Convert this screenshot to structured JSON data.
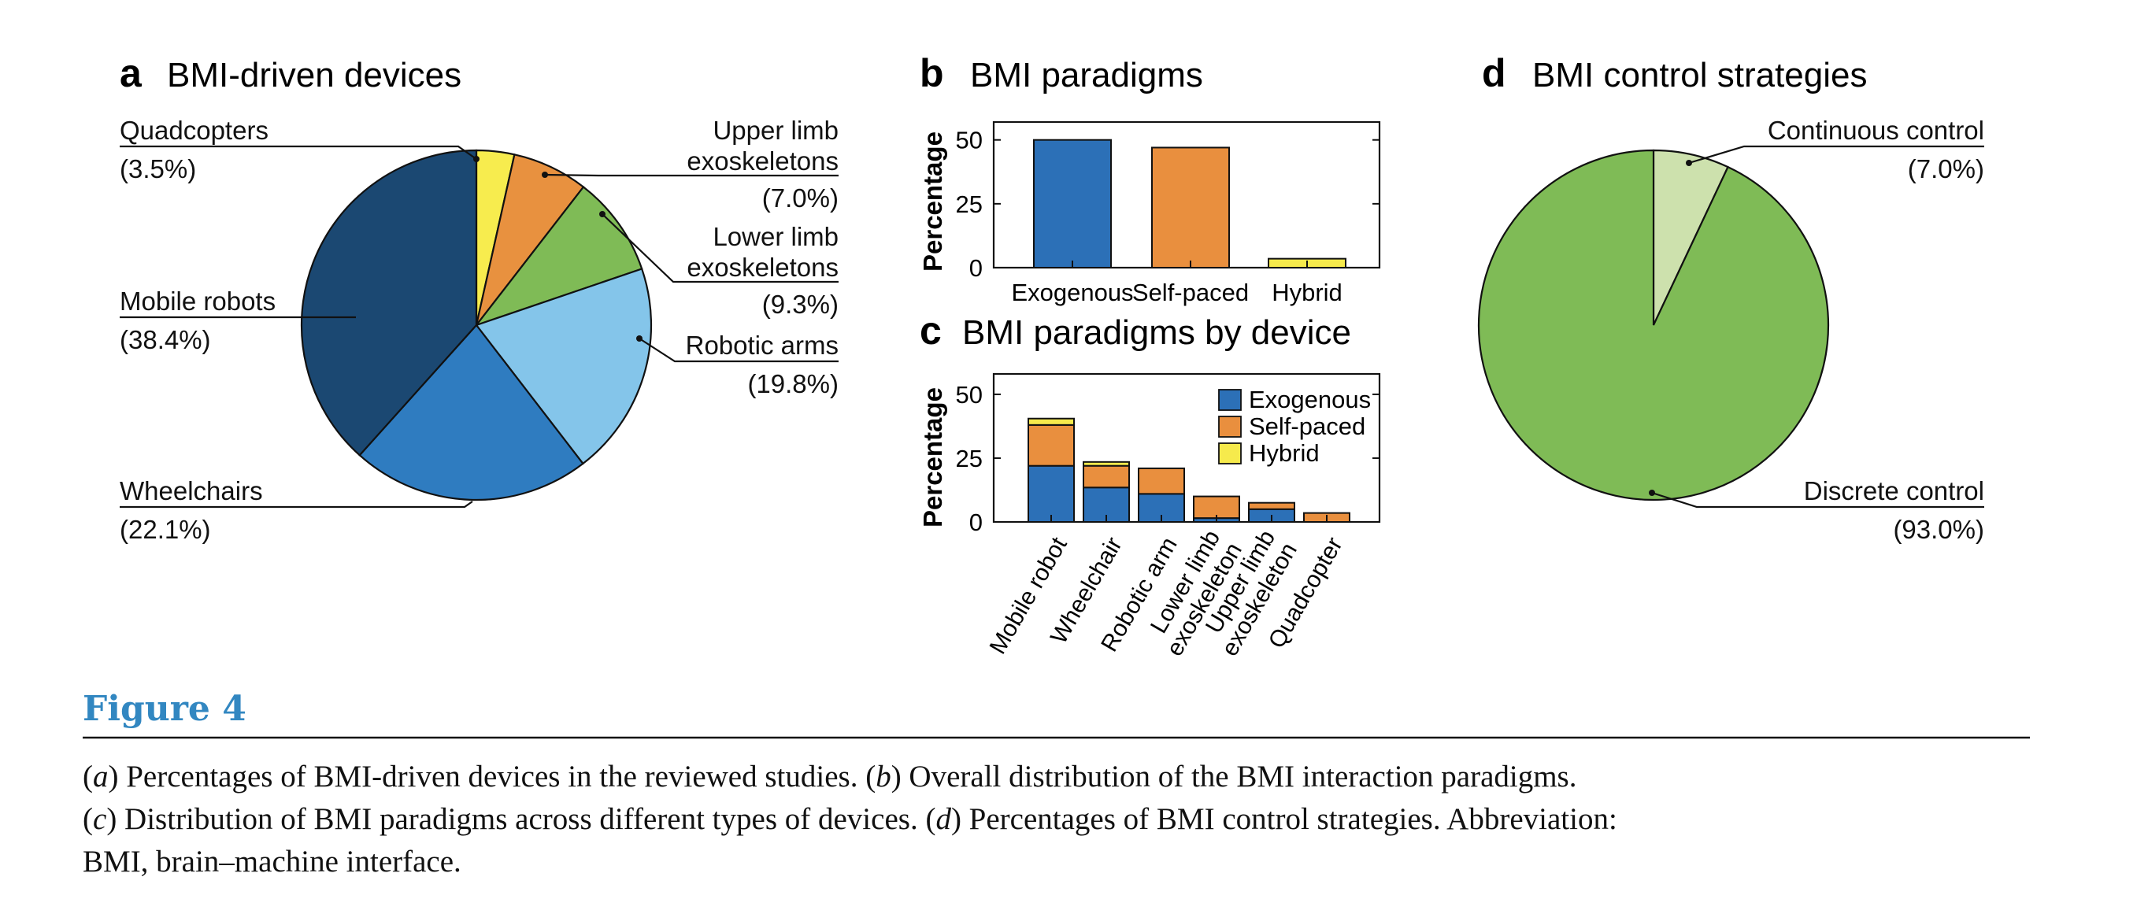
{
  "colors": {
    "dark_blue": "#1b4872",
    "mid_blue": "#2f7cc0",
    "light_blue": "#84c5ea",
    "green": "#7fbb56",
    "orange": "#e8913f",
    "yellow": "#f7ec4e",
    "pale_green": "#cde1ad",
    "caption_blue": "#3287c1",
    "bar_exogenous": "#2c70b7",
    "bar_selfpaced": "#e98f3e",
    "bar_hybrid": "#f6ea4c"
  },
  "figure_label": "Figure 4",
  "caption": {
    "line1_a": "(",
    "line1_a_letter": "a",
    "line1_a_text": ") Percentages of BMI-driven devices in the reviewed studies. (",
    "line1_b_letter": "b",
    "line1_b_text": ") Overall distribution of the BMI interaction paradigms.",
    "line2_c_open": "(",
    "line2_c_letter": "c",
    "line2_c_text": ") Distribution of BMI paradigms across different types of devices. (",
    "line2_d_letter": "d",
    "line2_d_text": ") Percentages of BMI control strategies. Abbreviation:",
    "line3": "BMI, brain–machine interface."
  },
  "chart_data": [
    {
      "panel": "a",
      "type": "pie",
      "title": "BMI-driven devices",
      "slices": [
        {
          "label": "Quadcopters",
          "value_label": "(3.5%)",
          "value": 3.5,
          "color": "#f7ec4e"
        },
        {
          "label": "Upper limb exoskeletons",
          "label_lines": [
            "Upper limb",
            "exoskeletons"
          ],
          "value_label": "(7.0%)",
          "value": 7.0,
          "color": "#e8913f"
        },
        {
          "label": "Lower limb exoskeletons",
          "label_lines": [
            "Lower limb",
            "exoskeletons"
          ],
          "value_label": "(9.3%)",
          "value": 9.3,
          "color": "#7fbb56"
        },
        {
          "label": "Robotic arms",
          "value_label": "(19.8%)",
          "value": 19.8,
          "color": "#84c5ea"
        },
        {
          "label": "Wheelchairs",
          "value_label": "(22.1%)",
          "value": 22.1,
          "color": "#2f7cc0"
        },
        {
          "label": "Mobile robots",
          "value_label": "(38.4%)",
          "value": 38.4,
          "color": "#1b4872"
        }
      ]
    },
    {
      "panel": "b",
      "type": "bar",
      "title": "BMI paradigms",
      "ylabel": "Percentage",
      "ylim": [
        0,
        57
      ],
      "yticks": [
        0,
        25,
        50
      ],
      "categories": [
        "Exogenous",
        "Self-paced",
        "Hybrid"
      ],
      "values": [
        50,
        47,
        3.5
      ],
      "colors": [
        "#2c70b7",
        "#e98f3e",
        "#f6ea4c"
      ]
    },
    {
      "panel": "c",
      "type": "bar",
      "stacked": true,
      "title": "BMI paradigms by device",
      "ylabel": "Percentage",
      "ylim": [
        0,
        58
      ],
      "yticks": [
        0,
        25,
        50
      ],
      "categories": [
        "Mobile robot",
        "Wheelchair",
        "Robotic arm",
        "Lower limb exoskeleton",
        "Upper limb exoskeleton",
        "Quadcopter"
      ],
      "category_lines": [
        [
          "Mobile robot"
        ],
        [
          "Wheelchair"
        ],
        [
          "Robotic arm"
        ],
        [
          "Lower limb",
          "exoskeleton"
        ],
        [
          "Upper limb",
          "exoskeleton"
        ],
        [
          "Quadcopter"
        ]
      ],
      "series": [
        {
          "name": "Exogenous",
          "values": [
            22,
            13.5,
            11,
            1.5,
            5,
            0
          ],
          "color": "#2c70b7"
        },
        {
          "name": "Self-paced",
          "values": [
            16,
            8.5,
            10,
            8.5,
            2.5,
            3.5
          ],
          "color": "#e98f3e"
        },
        {
          "name": "Hybrid",
          "values": [
            2.5,
            1.5,
            0,
            0,
            0,
            0
          ],
          "color": "#f6ea4c"
        }
      ],
      "legend": "top-right"
    },
    {
      "panel": "d",
      "type": "pie",
      "title": "BMI control strategies",
      "slices": [
        {
          "label": "Continuous control",
          "value_label": "(7.0%)",
          "value": 7.0,
          "color": "#cde1ad"
        },
        {
          "label": "Discrete control",
          "value_label": "(93.0%)",
          "value": 93.0,
          "color": "#7fbb56"
        }
      ]
    }
  ]
}
